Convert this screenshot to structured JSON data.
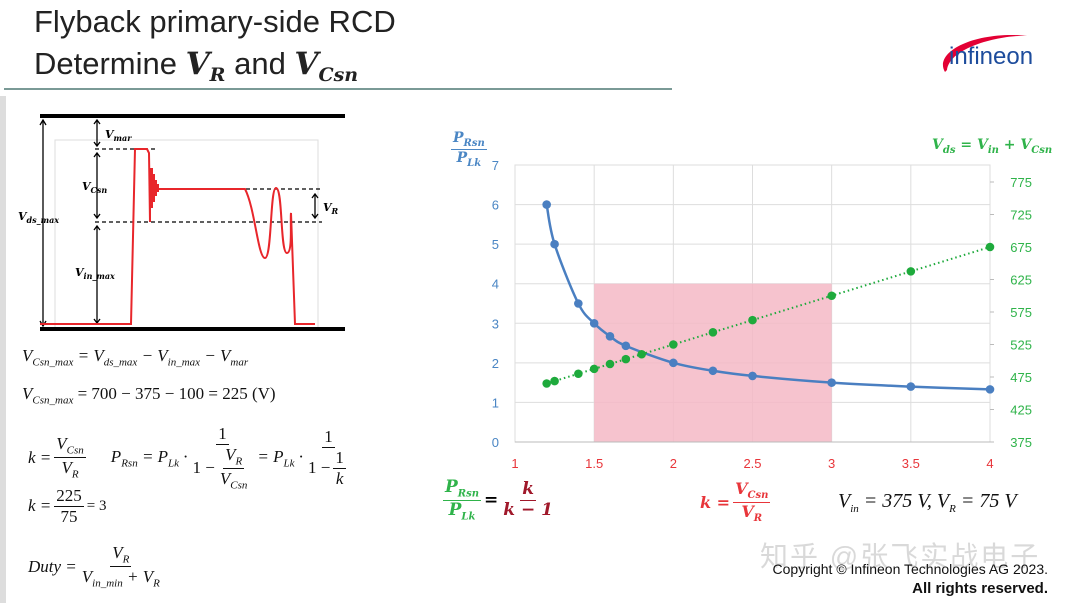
{
  "slide": {
    "title_line1": "Flyback primary-side RCD",
    "title_line2_prefix": "Determine ",
    "title_var1": "V",
    "title_var1_sub": "R",
    "title_and": " and ",
    "title_var2": "V",
    "title_var2_sub": "Csn",
    "logo_text": "infineon",
    "copyright_line1": "Copyright © Infineon Technologies AG 2023.",
    "copyright_line2": "All rights reserved.",
    "watermark": "知乎 @张飞实战电子"
  },
  "waveform": {
    "labels": {
      "v_mar": "V_{mar}",
      "v_csn": "V_{Csn}",
      "v_ds_max": "V_{ds_max}",
      "v_in_max": "V_{in_max}",
      "v_r": "V_{R}"
    },
    "colors": {
      "trace": "#e8262b",
      "rails": "#000000"
    }
  },
  "equations": {
    "eq1": "V_{Csn_max} = V_{ds_max} − V_{in_max} − V_{mar}",
    "eq2_lhs": "V_{Csn_max}",
    "eq2_rhs": "= 700 − 375 − 100 = 225 (V)",
    "k_lhs": "k =",
    "k_num": "V_{Csn}",
    "k_den": "V_{R}",
    "p_lhs": "P_{Rsn} = P_{Lk} ·",
    "p_num1": "1",
    "p_den1_a": "1 −",
    "p_den1_num": "V_{R}",
    "p_den1_den": "V_{Csn}",
    "p_mid": "= P_{Lk} ·",
    "p_num2": "1",
    "p_den2_a": "1 −",
    "p_den2_num": "1",
    "p_den2_den": "k",
    "k2_lhs": "k =",
    "k2_num": "225",
    "k2_den": "75",
    "k2_rhs": "= 3",
    "duty_lhs": "Duty =",
    "duty_num": "V_{R}",
    "duty_den": "V_{in_min} + V_{R}"
  },
  "annotations": {
    "ratio_num": "P_{Rsn}",
    "ratio_den": "P_{Lk}",
    "ratio_eq": "=",
    "k_num": "k",
    "k_den": "k − 1",
    "k_def_lhs": "k =",
    "k_def_num": "V_{Csn}",
    "k_def_den": "V_{R}",
    "conditions": "V_{in} = 375 V, V_{R} = 75 V"
  },
  "chart_data": {
    "type": "line",
    "left_axis_label_num": "P_{Rsn}",
    "left_axis_label_den": "P_{Lk}",
    "right_axis_label": "V_{ds} = V_{in} + V_{Csn}",
    "xlim": [
      1,
      4
    ],
    "x_ticks": [
      "1",
      "1.5",
      "2",
      "2.5",
      "3",
      "3.5",
      "4"
    ],
    "ylim_left": [
      0,
      7
    ],
    "y_ticks_left": [
      "0",
      "1",
      "2",
      "3",
      "4",
      "5",
      "6",
      "7"
    ],
    "y_ticks_right": [
      "375",
      "425",
      "475",
      "525",
      "575",
      "625",
      "675",
      "725",
      "775"
    ],
    "grid": true,
    "highlight_region": {
      "x": [
        1.5,
        3
      ],
      "y_left": [
        0,
        4
      ],
      "color": "#f4b8c6"
    },
    "series": [
      {
        "axis": "left",
        "color": "#4a7fc1",
        "style": "solid-smooth",
        "x": [
          1.2,
          1.25,
          1.4,
          1.5,
          1.6,
          1.7,
          2,
          2.25,
          2.5,
          3,
          3.5,
          4
        ],
        "y": [
          6,
          5,
          3.5,
          3,
          2.67,
          2.43,
          2,
          1.8,
          1.67,
          1.5,
          1.4,
          1.33
        ]
      },
      {
        "axis": "right",
        "color": "#1eaa3c",
        "style": "dotted",
        "x": [
          1.2,
          1.25,
          1.4,
          1.5,
          1.6,
          1.7,
          1.8,
          2,
          2.25,
          2.5,
          3,
          3.5,
          4
        ],
        "y": [
          465,
          468.75,
          480,
          487.5,
          495,
          502.5,
          510,
          525,
          543.75,
          562.5,
          600,
          637.5,
          675
        ]
      }
    ],
    "colors": {
      "left_axis": "#4a86c4",
      "right_axis": "#2fb34a",
      "x_axis": "#e8353a"
    }
  }
}
